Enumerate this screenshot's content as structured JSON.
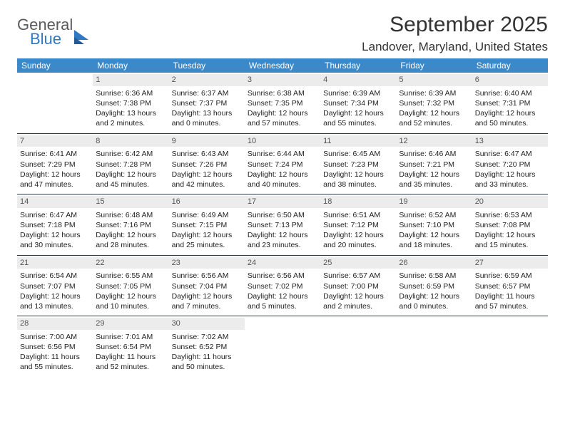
{
  "brand": {
    "general": "General",
    "blue": "Blue"
  },
  "title": "September 2025",
  "location": "Landover, Maryland, United States",
  "colors": {
    "header_bg": "#3b89c9",
    "daynum_bg": "#ececec",
    "rule": "#2b3a4a",
    "logo_blue": "#2f78c2",
    "logo_gray": "#5a5a5a"
  },
  "weekdays": [
    "Sunday",
    "Monday",
    "Tuesday",
    "Wednesday",
    "Thursday",
    "Friday",
    "Saturday"
  ],
  "weeks": [
    [
      {
        "empty": true
      },
      {
        "n": "1",
        "sr": "6:36 AM",
        "ss": "7:38 PM",
        "dl": "13 hours and 2 minutes."
      },
      {
        "n": "2",
        "sr": "6:37 AM",
        "ss": "7:37 PM",
        "dl": "13 hours and 0 minutes."
      },
      {
        "n": "3",
        "sr": "6:38 AM",
        "ss": "7:35 PM",
        "dl": "12 hours and 57 minutes."
      },
      {
        "n": "4",
        "sr": "6:39 AM",
        "ss": "7:34 PM",
        "dl": "12 hours and 55 minutes."
      },
      {
        "n": "5",
        "sr": "6:39 AM",
        "ss": "7:32 PM",
        "dl": "12 hours and 52 minutes."
      },
      {
        "n": "6",
        "sr": "6:40 AM",
        "ss": "7:31 PM",
        "dl": "12 hours and 50 minutes."
      }
    ],
    [
      {
        "n": "7",
        "sr": "6:41 AM",
        "ss": "7:29 PM",
        "dl": "12 hours and 47 minutes."
      },
      {
        "n": "8",
        "sr": "6:42 AM",
        "ss": "7:28 PM",
        "dl": "12 hours and 45 minutes."
      },
      {
        "n": "9",
        "sr": "6:43 AM",
        "ss": "7:26 PM",
        "dl": "12 hours and 42 minutes."
      },
      {
        "n": "10",
        "sr": "6:44 AM",
        "ss": "7:24 PM",
        "dl": "12 hours and 40 minutes."
      },
      {
        "n": "11",
        "sr": "6:45 AM",
        "ss": "7:23 PM",
        "dl": "12 hours and 38 minutes."
      },
      {
        "n": "12",
        "sr": "6:46 AM",
        "ss": "7:21 PM",
        "dl": "12 hours and 35 minutes."
      },
      {
        "n": "13",
        "sr": "6:47 AM",
        "ss": "7:20 PM",
        "dl": "12 hours and 33 minutes."
      }
    ],
    [
      {
        "n": "14",
        "sr": "6:47 AM",
        "ss": "7:18 PM",
        "dl": "12 hours and 30 minutes."
      },
      {
        "n": "15",
        "sr": "6:48 AM",
        "ss": "7:16 PM",
        "dl": "12 hours and 28 minutes."
      },
      {
        "n": "16",
        "sr": "6:49 AM",
        "ss": "7:15 PM",
        "dl": "12 hours and 25 minutes."
      },
      {
        "n": "17",
        "sr": "6:50 AM",
        "ss": "7:13 PM",
        "dl": "12 hours and 23 minutes."
      },
      {
        "n": "18",
        "sr": "6:51 AM",
        "ss": "7:12 PM",
        "dl": "12 hours and 20 minutes."
      },
      {
        "n": "19",
        "sr": "6:52 AM",
        "ss": "7:10 PM",
        "dl": "12 hours and 18 minutes."
      },
      {
        "n": "20",
        "sr": "6:53 AM",
        "ss": "7:08 PM",
        "dl": "12 hours and 15 minutes."
      }
    ],
    [
      {
        "n": "21",
        "sr": "6:54 AM",
        "ss": "7:07 PM",
        "dl": "12 hours and 13 minutes."
      },
      {
        "n": "22",
        "sr": "6:55 AM",
        "ss": "7:05 PM",
        "dl": "12 hours and 10 minutes."
      },
      {
        "n": "23",
        "sr": "6:56 AM",
        "ss": "7:04 PM",
        "dl": "12 hours and 7 minutes."
      },
      {
        "n": "24",
        "sr": "6:56 AM",
        "ss": "7:02 PM",
        "dl": "12 hours and 5 minutes."
      },
      {
        "n": "25",
        "sr": "6:57 AM",
        "ss": "7:00 PM",
        "dl": "12 hours and 2 minutes."
      },
      {
        "n": "26",
        "sr": "6:58 AM",
        "ss": "6:59 PM",
        "dl": "12 hours and 0 minutes."
      },
      {
        "n": "27",
        "sr": "6:59 AM",
        "ss": "6:57 PM",
        "dl": "11 hours and 57 minutes."
      }
    ],
    [
      {
        "n": "28",
        "sr": "7:00 AM",
        "ss": "6:56 PM",
        "dl": "11 hours and 55 minutes."
      },
      {
        "n": "29",
        "sr": "7:01 AM",
        "ss": "6:54 PM",
        "dl": "11 hours and 52 minutes."
      },
      {
        "n": "30",
        "sr": "7:02 AM",
        "ss": "6:52 PM",
        "dl": "11 hours and 50 minutes."
      },
      {
        "empty": true
      },
      {
        "empty": true
      },
      {
        "empty": true
      },
      {
        "empty": true
      }
    ]
  ],
  "labels": {
    "sunrise": "Sunrise:",
    "sunset": "Sunset:",
    "daylight": "Daylight:"
  }
}
